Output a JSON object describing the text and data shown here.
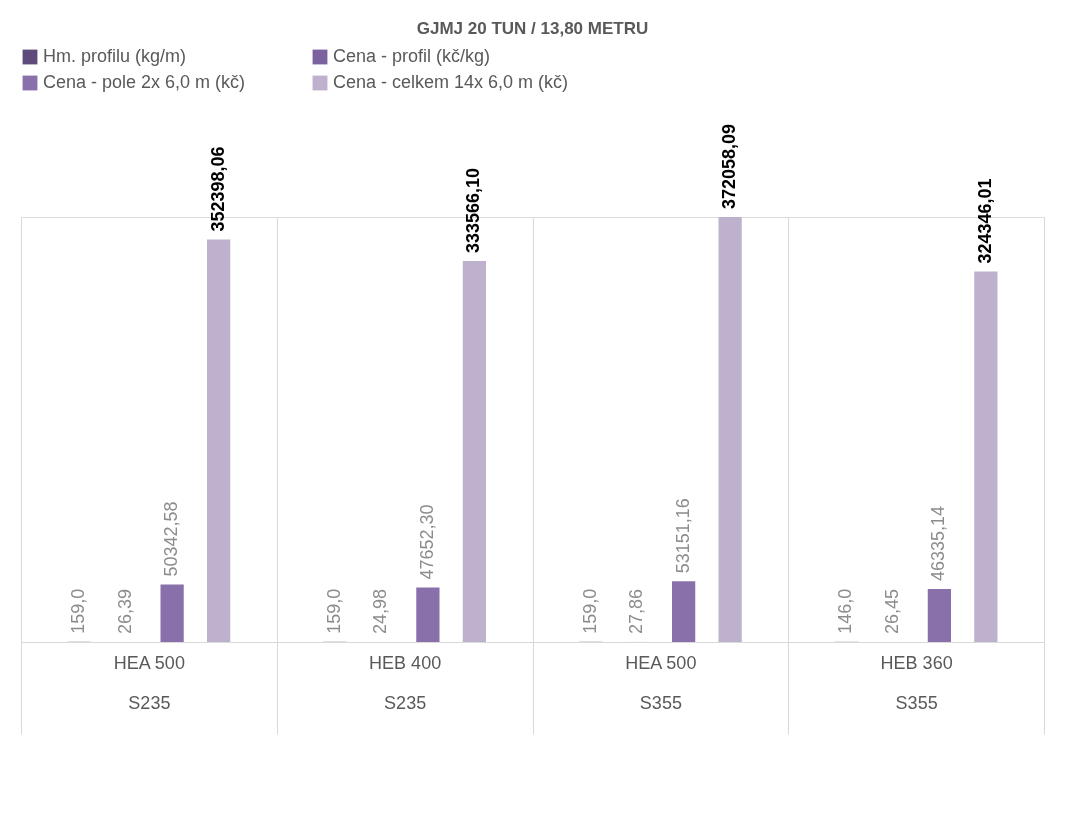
{
  "chart_data": {
    "type": "bar",
    "title": "GJMJ 20 TUN / 13,80 METRU",
    "categories": [
      "HEA 500\nS235",
      "HEB 400\nS235",
      "HEA 500\nS355",
      "HEB 360\nS355"
    ],
    "series": [
      {
        "name": "Hm. profilu  (kg/m)",
        "color": "#5f4b7b",
        "values": [
          159.0,
          159.0,
          159.0,
          146.0
        ],
        "value_labels": [
          "159,0",
          "159,0",
          "159,0",
          "146,0"
        ]
      },
      {
        "name": "Cena - profil (kč/kg)",
        "color": "#7d62a0",
        "values": [
          26.39,
          24.98,
          27.86,
          26.45
        ],
        "value_labels": [
          "26,39",
          "24,98",
          "27,86",
          "26,45"
        ]
      },
      {
        "name": "Cena - pole 2x 6,0 m  (kč)",
        "color": "#8a70ab",
        "values": [
          50342.58,
          47652.3,
          53151.16,
          46335.14
        ],
        "value_labels": [
          "50342,58",
          "47652,30",
          "53151,16",
          "46335,14"
        ]
      },
      {
        "name": "Cena - celkem 14x 6,0 m  (kč)",
        "color": "#bdb1cd",
        "values": [
          352398.06,
          333566.1,
          372058.09,
          324346.01
        ],
        "value_labels": [
          "352398,06",
          "333566,10",
          "372058,09",
          "324346,01"
        ]
      }
    ],
    "legend": "top",
    "grid": "x"
  }
}
